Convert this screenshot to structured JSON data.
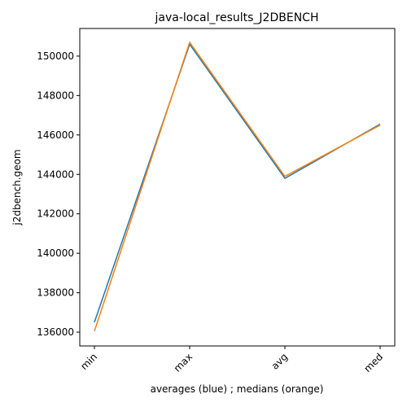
{
  "colors": {
    "blue": "#1f77b4",
    "orange": "#ff7f0e"
  },
  "chart_data": {
    "type": "line",
    "title": "java-local_results_J2DBENCH",
    "xlabel": "averages (blue) ; medians (orange)",
    "ylabel": "j2dbench.geom",
    "categories": [
      "min",
      "max",
      "avg",
      "med"
    ],
    "ylim": [
      135300,
      151400
    ],
    "yticks": [
      136000,
      138000,
      140000,
      142000,
      144000,
      146000,
      148000,
      150000
    ],
    "ytick_labels": [
      "136000",
      "138000",
      "140000",
      "142000",
      "144000",
      "146000",
      "148000",
      "150000"
    ],
    "grid": false,
    "series": [
      {
        "color": "#1f77b4",
        "values": [
          136500,
          150600,
          143800,
          146550
        ]
      },
      {
        "color": "#ff7f0e",
        "values": [
          136050,
          150700,
          143900,
          146500
        ]
      }
    ]
  }
}
